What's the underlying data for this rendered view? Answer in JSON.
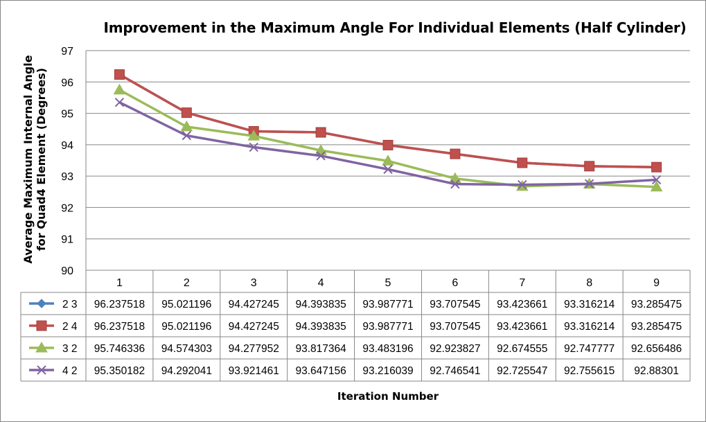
{
  "chart_data": {
    "type": "line",
    "title": "Improvement in the Maximum Angle For Individual Elements (Half Cylinder)",
    "xlabel": "Iteration Number",
    "ylabel": "Average Maximum Internal Angle for Quad4 Element (Degrees)",
    "categories": [
      "1",
      "2",
      "3",
      "4",
      "5",
      "6",
      "7",
      "8",
      "9"
    ],
    "ylim": [
      90,
      97
    ],
    "yticks": [
      "90",
      "91",
      "92",
      "93",
      "94",
      "95",
      "96",
      "97"
    ],
    "grid": true,
    "legend": "data-table",
    "series": [
      {
        "name": "2 3",
        "color": "#4F81BD",
        "marker": "diamond",
        "values": [
          96.237518,
          95.021196,
          94.427245,
          94.393835,
          93.987771,
          93.707545,
          93.423661,
          93.316214,
          93.285475
        ],
        "labels": [
          "96.237518",
          "95.021196",
          "94.427245",
          "94.393835",
          "93.987771",
          "93.707545",
          "93.423661",
          "93.316214",
          "93.285475"
        ]
      },
      {
        "name": "2 4",
        "color": "#C0504D",
        "marker": "square",
        "values": [
          96.237518,
          95.021196,
          94.427245,
          94.393835,
          93.987771,
          93.707545,
          93.423661,
          93.316214,
          93.285475
        ],
        "labels": [
          "96.237518",
          "95.021196",
          "94.427245",
          "94.393835",
          "93.987771",
          "93.707545",
          "93.423661",
          "93.316214",
          "93.285475"
        ]
      },
      {
        "name": "3 2",
        "color": "#9BBB59",
        "marker": "triangle",
        "values": [
          95.746336,
          94.574303,
          94.277952,
          93.817364,
          93.483196,
          92.923827,
          92.674555,
          92.747777,
          92.656486
        ],
        "labels": [
          "95.746336",
          "94.574303",
          "94.277952",
          "93.817364",
          "93.483196",
          "92.923827",
          "92.674555",
          "92.747777",
          "92.656486"
        ]
      },
      {
        "name": "4 2",
        "color": "#8064A2",
        "marker": "x",
        "values": [
          95.350182,
          94.292041,
          93.921461,
          93.647156,
          93.216039,
          92.746541,
          92.725547,
          92.755615,
          92.88301
        ],
        "labels": [
          "95.350182",
          "94.292041",
          "93.921461",
          "93.647156",
          "93.216039",
          "92.746541",
          "92.725547",
          "92.755615",
          "92.88301"
        ]
      }
    ]
  }
}
